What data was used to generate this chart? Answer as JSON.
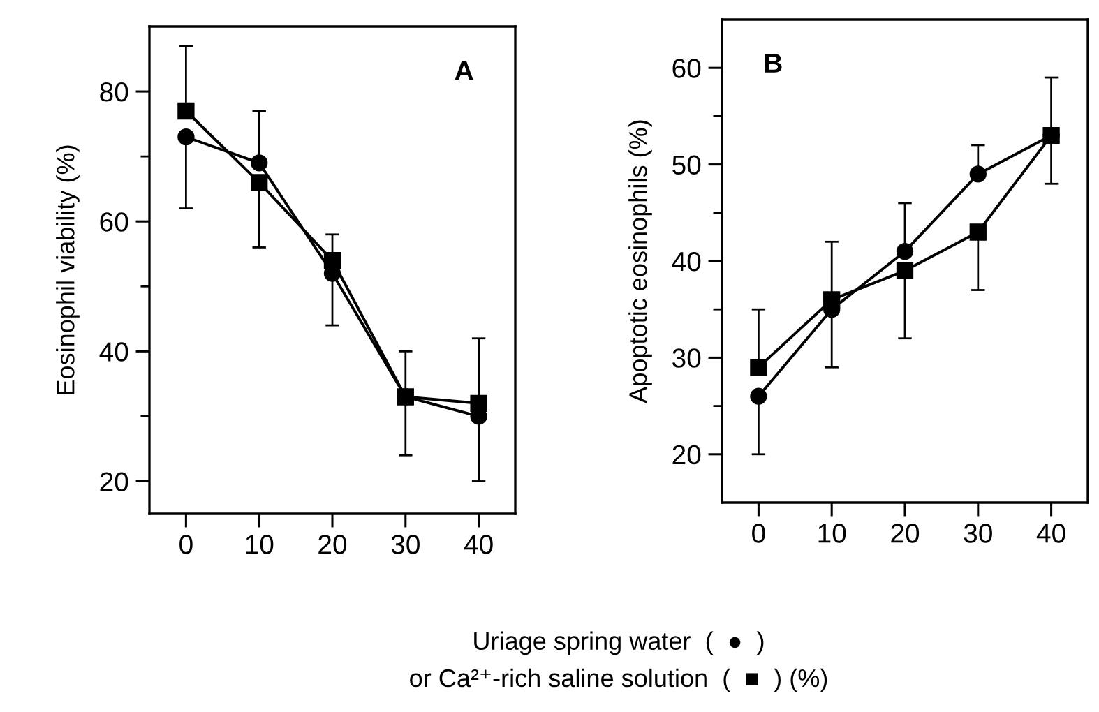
{
  "chart_data": [
    {
      "type": "line",
      "ylabel": "Eosinophil viability (%)",
      "xlabel": "Uriage spring water  (  ●  )\nor Ca²⁺-rich saline solution  (  ■  ) (%)",
      "annotations": [
        "A"
      ],
      "x": [
        0,
        10,
        20,
        30,
        40
      ],
      "xlim": [
        -5,
        45
      ],
      "xticks": [
        0,
        10,
        20,
        30,
        40
      ],
      "ylim": [
        15,
        90
      ],
      "yticks": [
        20,
        {
          "value": 30,
          "label": null
        },
        40,
        {
          "value": 50,
          "label": null
        },
        60,
        {
          "value": 70,
          "label": null
        },
        80
      ],
      "grid": false,
      "series": [
        {
          "color": "#000000",
          "marker": "circle",
          "line_style": "solid",
          "values": [
            73,
            69,
            52,
            33,
            30
          ],
          "errors": [
            [
              62,
              73
            ],
            [
              69,
              77
            ],
            [
              44,
              52
            ],
            [
              24,
              33
            ],
            [
              20,
              30
            ]
          ]
        },
        {
          "color": "#000000",
          "marker": "square",
          "line_style": "solid",
          "values": [
            77,
            66,
            54,
            33,
            32
          ],
          "errors": [
            [
              77,
              87
            ],
            [
              56,
              66
            ],
            [
              54,
              58
            ],
            [
              33,
              40
            ],
            [
              32,
              42
            ]
          ]
        }
      ]
    },
    {
      "type": "line",
      "ylabel": "Apoptotic eosinophils (%)",
      "annotations": [
        "B"
      ],
      "x": [
        0,
        10,
        20,
        30,
        40
      ],
      "xlim": [
        -5,
        45
      ],
      "xticks": [
        0,
        10,
        20,
        30,
        40
      ],
      "ylim": [
        15,
        65
      ],
      "yticks": [
        20,
        {
          "value": 25,
          "label": null
        },
        30,
        {
          "value": 35,
          "label": null
        },
        40,
        {
          "value": 45,
          "label": null
        },
        50,
        {
          "value": 55,
          "label": null
        },
        60
      ],
      "grid": false,
      "series": [
        {
          "color": "#000000",
          "marker": "circle",
          "line_style": "solid",
          "values": [
            26,
            35,
            41,
            49,
            53
          ],
          "errors": [
            [
              20,
              26
            ],
            [
              29,
              35
            ],
            [
              41,
              46
            ],
            [
              49,
              52
            ],
            [
              48,
              53
            ]
          ]
        },
        {
          "color": "#000000",
          "marker": "square",
          "line_style": "solid",
          "values": [
            29,
            36,
            39,
            43,
            53
          ],
          "errors": [
            [
              29,
              35
            ],
            [
              36,
              42
            ],
            [
              32,
              39
            ],
            [
              37,
              43
            ],
            [
              53,
              59
            ]
          ]
        }
      ]
    }
  ]
}
